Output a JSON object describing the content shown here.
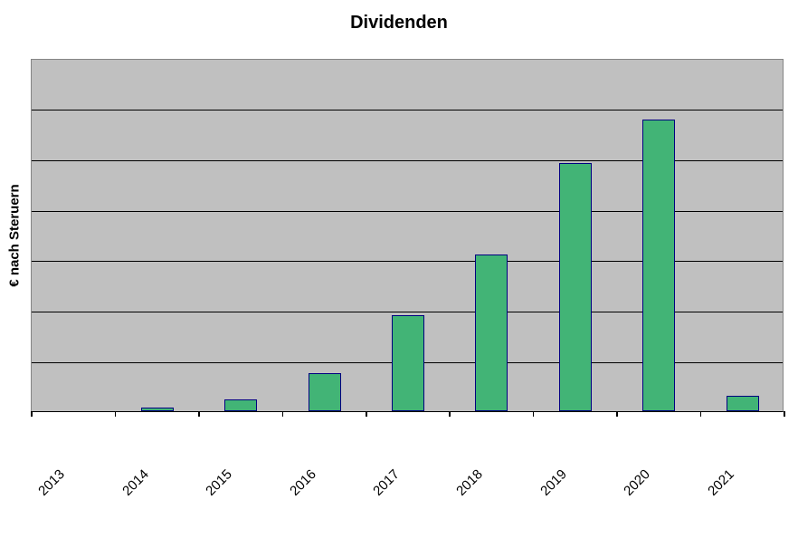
{
  "chart_data": {
    "type": "bar",
    "title": "Dividenden",
    "xlabel": "",
    "ylabel": "€ nach Steruern",
    "categories": [
      "2013",
      "2014",
      "2015",
      "2016",
      "2017",
      "2018",
      "2019",
      "2020",
      "2021"
    ],
    "values": [
      0,
      0.08,
      0.23,
      0.75,
      1.9,
      3.1,
      4.92,
      5.78,
      0.31
    ],
    "value_unit": "gridline divisions (y axis has no tick labels)",
    "ylim": [
      0,
      7
    ],
    "grid": "horizontal",
    "legend": "none",
    "colors": {
      "bar_fill": "#42B476",
      "bar_border": "#000080",
      "plot_background": "#C0C0C0",
      "plot_border": "#858585",
      "gridline": "#000000",
      "axis": "#000000",
      "tick": "#000000",
      "text": "#000000",
      "page_background": "#FFFFFF"
    }
  }
}
